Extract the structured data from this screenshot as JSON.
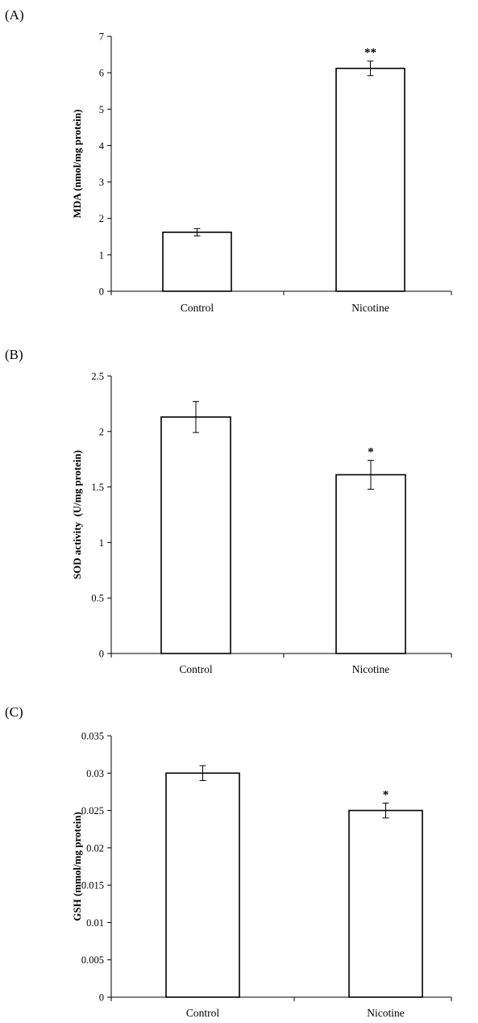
{
  "chart_data": [
    {
      "panel_label": "(A)",
      "type": "bar",
      "categories": [
        "Control",
        "Nicotine"
      ],
      "values": [
        1.62,
        6.12
      ],
      "errors": [
        0.1,
        0.2
      ],
      "significance": [
        "",
        "**"
      ],
      "ylabel": "MDA (nmol/mg protein)",
      "ylim": [
        0,
        7
      ],
      "yticks": [
        0,
        1,
        2,
        3,
        4,
        5,
        6,
        7
      ],
      "ytick_labels": [
        "0",
        "1",
        "2",
        "3",
        "4",
        "5",
        "6",
        "7"
      ]
    },
    {
      "panel_label": "(B)",
      "type": "bar",
      "categories": [
        "Control",
        "Nicotine"
      ],
      "values": [
        2.13,
        1.61
      ],
      "errors": [
        0.14,
        0.13
      ],
      "significance": [
        "",
        "*"
      ],
      "ylabel": "SOD activity  (U/mg protein)",
      "ylim": [
        0,
        2.5
      ],
      "yticks": [
        0,
        0.5,
        1,
        1.5,
        2,
        2.5
      ],
      "ytick_labels": [
        "0",
        "0.5",
        "1",
        "1.5",
        "2",
        "2.5"
      ]
    },
    {
      "panel_label": "(C)",
      "type": "bar",
      "categories": [
        "Control",
        "Nicotine"
      ],
      "values": [
        0.03,
        0.025
      ],
      "errors": [
        0.001,
        0.001
      ],
      "significance": [
        "",
        "*"
      ],
      "ylabel": "GSH (mmol/mg protein)",
      "ylim": [
        0,
        0.035
      ],
      "yticks": [
        0,
        0.005,
        0.01,
        0.015,
        0.02,
        0.025,
        0.03,
        0.035
      ],
      "ytick_labels": [
        "0",
        "0.005",
        "0.01",
        "0.015",
        "0.02",
        "0.025",
        "0.03",
        "0.035"
      ]
    }
  ]
}
